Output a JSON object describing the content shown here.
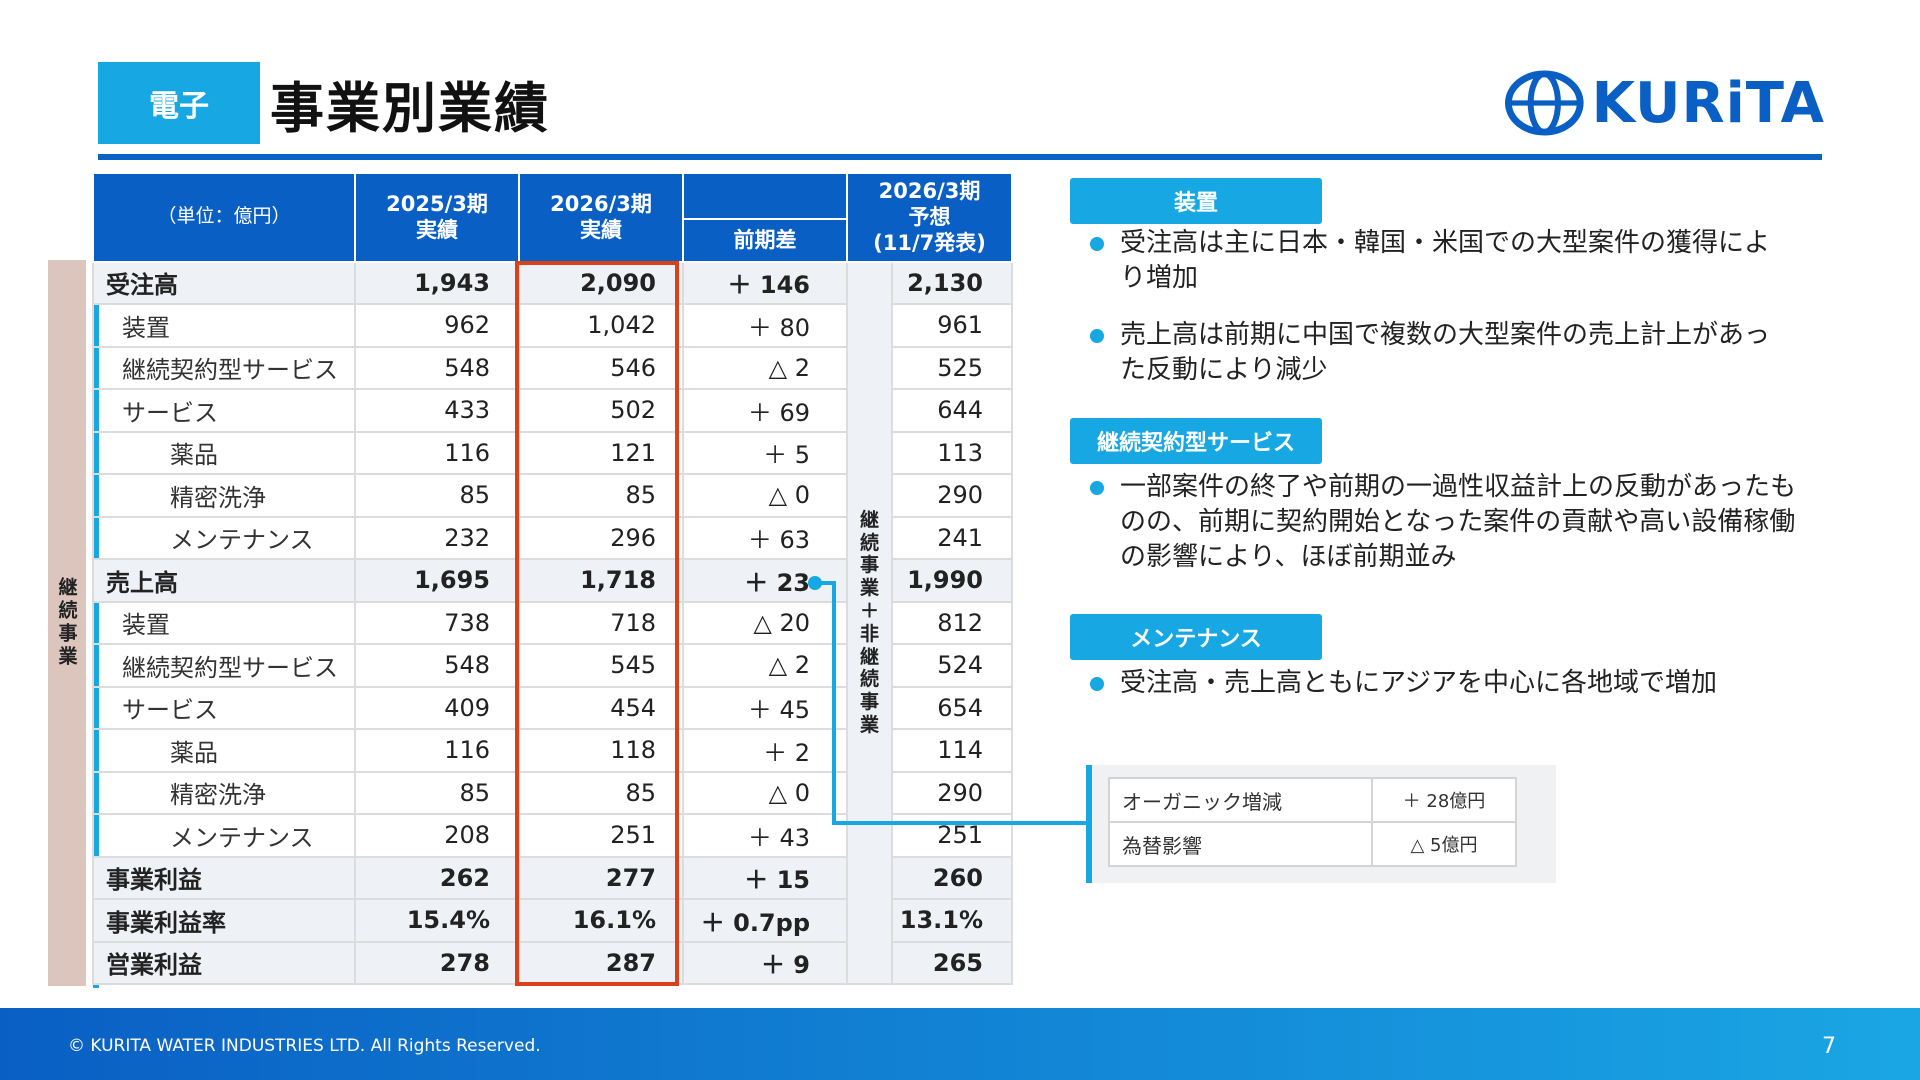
{
  "header": {
    "badge": "電子",
    "title": "事業別業績",
    "logo_text": "KURiTA"
  },
  "table": {
    "headers": {
      "unit": "（単位：億円）",
      "fy2025": [
        "2025/3期",
        "実績"
      ],
      "fy2026": [
        "2026/3期",
        "実績"
      ],
      "diff": "前期差",
      "forecast": [
        "2026/3期",
        "予想",
        "(11/7発表)"
      ]
    },
    "side_label": "継続事業",
    "forecast_band_label": "継続事業＋非継続事業",
    "rows": [
      {
        "label": "受注高",
        "level": 0,
        "major": true,
        "fy2025": "1,943",
        "fy2026": "2,090",
        "diff": "＋ 146",
        "forecast": "2,130"
      },
      {
        "label": "装置",
        "level": 1,
        "fy2025": "962",
        "fy2026": "1,042",
        "diff": "＋ 80",
        "forecast": "961"
      },
      {
        "label": "継続契約型サービス",
        "level": 1,
        "fy2025": "548",
        "fy2026": "546",
        "diff": "△ 2",
        "forecast": "525"
      },
      {
        "label": "サービス",
        "level": 1,
        "fy2025": "433",
        "fy2026": "502",
        "diff": "＋ 69",
        "forecast": "644"
      },
      {
        "label": "薬品",
        "level": 2,
        "fy2025": "116",
        "fy2026": "121",
        "diff": "＋ 5",
        "forecast": "113"
      },
      {
        "label": "精密洗浄",
        "level": 2,
        "fy2025": "85",
        "fy2026": "85",
        "diff": "△ 0",
        "forecast": "290"
      },
      {
        "label": "メンテナンス",
        "level": 2,
        "fy2025": "232",
        "fy2026": "296",
        "diff": "＋ 63",
        "forecast": "241"
      },
      {
        "label": "売上高",
        "level": 0,
        "major": true,
        "fy2025": "1,695",
        "fy2026": "1,718",
        "diff": "＋ 23",
        "forecast": "1,990"
      },
      {
        "label": "装置",
        "level": 1,
        "fy2025": "738",
        "fy2026": "718",
        "diff": "△ 20",
        "forecast": "812"
      },
      {
        "label": "継続契約型サービス",
        "level": 1,
        "fy2025": "548",
        "fy2026": "545",
        "diff": "△ 2",
        "forecast": "524"
      },
      {
        "label": "サービス",
        "level": 1,
        "fy2025": "409",
        "fy2026": "454",
        "diff": "＋ 45",
        "forecast": "654"
      },
      {
        "label": "薬品",
        "level": 2,
        "fy2025": "116",
        "fy2026": "118",
        "diff": "＋ 2",
        "forecast": "114"
      },
      {
        "label": "精密洗浄",
        "level": 2,
        "fy2025": "85",
        "fy2026": "85",
        "diff": "△ 0",
        "forecast": "290"
      },
      {
        "label": "メンテナンス",
        "level": 2,
        "fy2025": "208",
        "fy2026": "251",
        "diff": "＋ 43",
        "forecast": "251"
      },
      {
        "label": "事業利益",
        "level": 0,
        "major": true,
        "fy2025": "262",
        "fy2026": "277",
        "diff": "＋ 15",
        "forecast": "260"
      },
      {
        "label": "事業利益率",
        "level": 0,
        "major": true,
        "fy2025": "15.4%",
        "fy2026": "16.1%",
        "diff": "＋ 0.7pp",
        "forecast": "13.1%"
      },
      {
        "label": "営業利益",
        "level": 0,
        "major": true,
        "fy2025": "278",
        "fy2026": "287",
        "diff": "＋ 9",
        "forecast": "265"
      }
    ]
  },
  "panel": {
    "sections": [
      {
        "tag": "装置",
        "bullets": [
          "受注高は主に日本・韓国・米国での大型案件の獲得により増加",
          "売上高は前期に中国で複数の大型案件の売上計上があった反動により減少"
        ]
      },
      {
        "tag": "継続契約型サービス",
        "bullets": [
          "一部案件の終了や前期の一過性収益計上の反動があったものの、前期に契約開始となった案件の貢献や高い設備稼働の影響により、ほぼ前期並み"
        ]
      },
      {
        "tag": "メンテナンス",
        "bullets": [
          "受注高・売上高ともにアジアを中心に各地域で増加"
        ]
      }
    ],
    "sub_table": [
      {
        "label": "オーガニック増減",
        "value": "＋ 28億円"
      },
      {
        "label": "為替影響",
        "value": "△ 5億円"
      }
    ]
  },
  "footer": {
    "copyright": "© KURITA WATER INDUSTRIES LTD. All Rights Reserved.",
    "page": "7"
  },
  "colors": {
    "brand_blue": "#0a5fc4",
    "accent_cyan": "#17a8e3",
    "highlight_red": "#d9411b"
  }
}
